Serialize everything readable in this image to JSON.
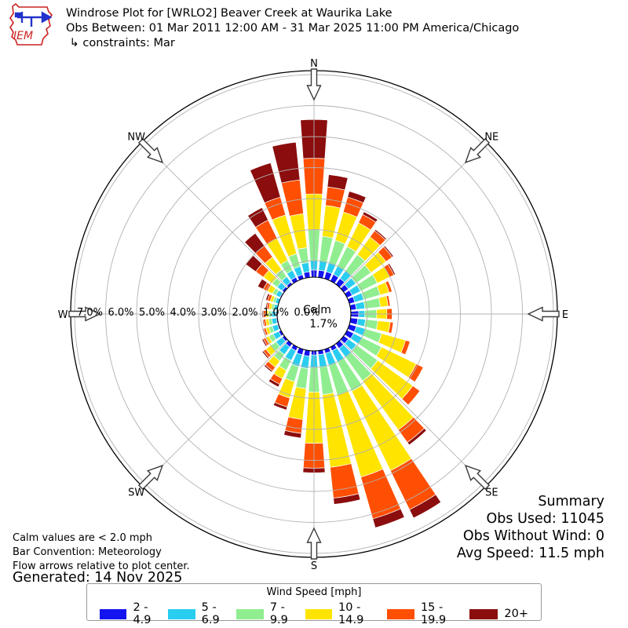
{
  "header": {
    "title": "Windrose Plot for [WRLO2] Beaver Creek at Waurika Lake",
    "subtitle": "Obs Between: 01 Mar 2011 12:00 AM - 31 Mar 2025 11:00 PM America/Chicago",
    "constraint": "↳ constraints: Mar",
    "logo_text": "IEM"
  },
  "plot": {
    "compass_labels": [
      "N",
      "NE",
      "E",
      "SE",
      "S",
      "SW",
      "W",
      "NW"
    ],
    "radial_tick_labels": [
      "7.0%",
      "6.0%",
      "5.0%",
      "4.0%",
      "3.0%",
      "2.0%",
      "1.0%",
      "0.0%"
    ],
    "calm_label": "Calm",
    "calm_value": "1.7%"
  },
  "summary": {
    "title": "Summary",
    "obs_used": "Obs Used: 11045",
    "obs_without_wind": "Obs Without Wind: 0",
    "avg_speed": "Avg Speed: 11.5 mph"
  },
  "notes": {
    "line1": "Calm values are < 2.0 mph",
    "line2": "Bar Convention: Meteorology",
    "line3": "Flow arrows relative to plot center."
  },
  "generated": "Generated: 14 Nov 2025",
  "legend": {
    "title": "Wind Speed [mph]"
  },
  "chart_data": {
    "type": "windrose",
    "title": "Windrose Plot for [WRLO2] Beaver Creek at Waurika Lake",
    "units": "mph",
    "calm_pct": 1.7,
    "radial_axis": {
      "min_pct": 0.0,
      "max_pct": 7.0,
      "tick_step_pct": 1.0,
      "grid": true
    },
    "direction_step_deg": 10,
    "bar_width_deg": 8,
    "speed_bins": [
      {
        "label": "2 - 4.9",
        "color": "#1414f0"
      },
      {
        "label": "5 - 6.9",
        "color": "#29cdf0"
      },
      {
        "label": "7 - 9.9",
        "color": "#90ee90"
      },
      {
        "label": "10 - 14.9",
        "color": "#ffe400"
      },
      {
        "label": "15 - 19.9",
        "color": "#ff4f02"
      },
      {
        "label": "20+",
        "color": "#8b0d0d"
      }
    ],
    "sectors": [
      {
        "dir_deg": 0,
        "pct": [
          0.7,
          0.3,
          1.0,
          1.15,
          1.15,
          1.25
        ]
      },
      {
        "dir_deg": 10,
        "pct": [
          0.7,
          0.3,
          0.8,
          1.0,
          0.6,
          0.4
        ]
      },
      {
        "dir_deg": 20,
        "pct": [
          0.7,
          0.3,
          0.75,
          0.95,
          0.5,
          0.2
        ]
      },
      {
        "dir_deg": 30,
        "pct": [
          0.7,
          0.3,
          0.7,
          0.85,
          0.3,
          0.1
        ]
      },
      {
        "dir_deg": 40,
        "pct": [
          0.7,
          0.3,
          0.65,
          0.7,
          0.25,
          0.05
        ]
      },
      {
        "dir_deg": 50,
        "pct": [
          0.65,
          0.3,
          0.6,
          0.6,
          0.25,
          0.05
        ]
      },
      {
        "dir_deg": 60,
        "pct": [
          0.65,
          0.3,
          0.6,
          0.45,
          0.15,
          0.05
        ]
      },
      {
        "dir_deg": 70,
        "pct": [
          0.65,
          0.3,
          0.55,
          0.3,
          0.1,
          0.0
        ]
      },
      {
        "dir_deg": 80,
        "pct": [
          0.65,
          0.28,
          0.5,
          0.25,
          0.07,
          0.0
        ]
      },
      {
        "dir_deg": 90,
        "pct": [
          0.72,
          0.2,
          0.38,
          0.33,
          0.17,
          0.0
        ]
      },
      {
        "dir_deg": 100,
        "pct": [
          0.7,
          0.25,
          0.4,
          0.4,
          0.1,
          0.0
        ]
      },
      {
        "dir_deg": 110,
        "pct": [
          0.7,
          0.3,
          0.55,
          0.8,
          0.15,
          0.0
        ]
      },
      {
        "dir_deg": 120,
        "pct": [
          0.7,
          0.3,
          0.7,
          1.25,
          0.25,
          0.0
        ]
      },
      {
        "dir_deg": 130,
        "pct": [
          0.65,
          0.32,
          0.85,
          1.4,
          0.28,
          0.0
        ]
      },
      {
        "dir_deg": 140,
        "pct": [
          0.65,
          0.35,
          0.95,
          1.95,
          0.5,
          0.1
        ]
      },
      {
        "dir_deg": 150,
        "pct": [
          0.6,
          0.4,
          1.05,
          2.85,
          1.4,
          0.3
        ]
      },
      {
        "dir_deg": 160,
        "pct": [
          0.6,
          0.4,
          1.0,
          2.75,
          1.4,
          0.3
        ]
      },
      {
        "dir_deg": 170,
        "pct": [
          0.6,
          0.4,
          0.9,
          2.35,
          1.0,
          0.2
        ]
      },
      {
        "dir_deg": 180,
        "pct": [
          0.6,
          0.4,
          0.8,
          1.65,
          0.8,
          0.15
        ]
      },
      {
        "dir_deg": 190,
        "pct": [
          0.65,
          0.4,
          0.65,
          1.0,
          0.45,
          0.15
        ]
      },
      {
        "dir_deg": 200,
        "pct": [
          0.65,
          0.4,
          0.5,
          0.55,
          0.3,
          0.1
        ]
      },
      {
        "dir_deg": 210,
        "pct": [
          0.6,
          0.35,
          0.35,
          0.3,
          0.2,
          0.1
        ]
      },
      {
        "dir_deg": 220,
        "pct": [
          0.6,
          0.3,
          0.25,
          0.25,
          0.15,
          0.05
        ]
      },
      {
        "dir_deg": 230,
        "pct": [
          0.55,
          0.25,
          0.2,
          0.2,
          0.1,
          0.05
        ]
      },
      {
        "dir_deg": 240,
        "pct": [
          0.55,
          0.2,
          0.15,
          0.12,
          0.08,
          0.05
        ]
      },
      {
        "dir_deg": 250,
        "pct": [
          0.5,
          0.18,
          0.12,
          0.1,
          0.07,
          0.03
        ]
      },
      {
        "dir_deg": 260,
        "pct": [
          0.5,
          0.15,
          0.1,
          0.1,
          0.07,
          0.03
        ]
      },
      {
        "dir_deg": 270,
        "pct": [
          0.5,
          0.15,
          0.1,
          0.08,
          0.08,
          0.04
        ]
      },
      {
        "dir_deg": 280,
        "pct": [
          0.45,
          0.13,
          0.08,
          0.08,
          0.07,
          0.04
        ]
      },
      {
        "dir_deg": 290,
        "pct": [
          0.45,
          0.13,
          0.08,
          0.09,
          0.09,
          0.06
        ]
      },
      {
        "dir_deg": 300,
        "pct": [
          0.5,
          0.15,
          0.12,
          0.18,
          0.15,
          0.2
        ]
      },
      {
        "dir_deg": 310,
        "pct": [
          0.55,
          0.2,
          0.2,
          0.35,
          0.3,
          0.4
        ]
      },
      {
        "dir_deg": 320,
        "pct": [
          0.55,
          0.22,
          0.28,
          0.5,
          0.45,
          0.5
        ]
      },
      {
        "dir_deg": 330,
        "pct": [
          0.6,
          0.25,
          0.35,
          0.8,
          0.65,
          0.45
        ]
      },
      {
        "dir_deg": 340,
        "pct": [
          0.6,
          0.28,
          0.42,
          1.3,
          0.6,
          1.15
        ]
      },
      {
        "dir_deg": 350,
        "pct": [
          0.65,
          0.3,
          0.48,
          1.1,
          1.1,
          1.22
        ]
      }
    ]
  }
}
